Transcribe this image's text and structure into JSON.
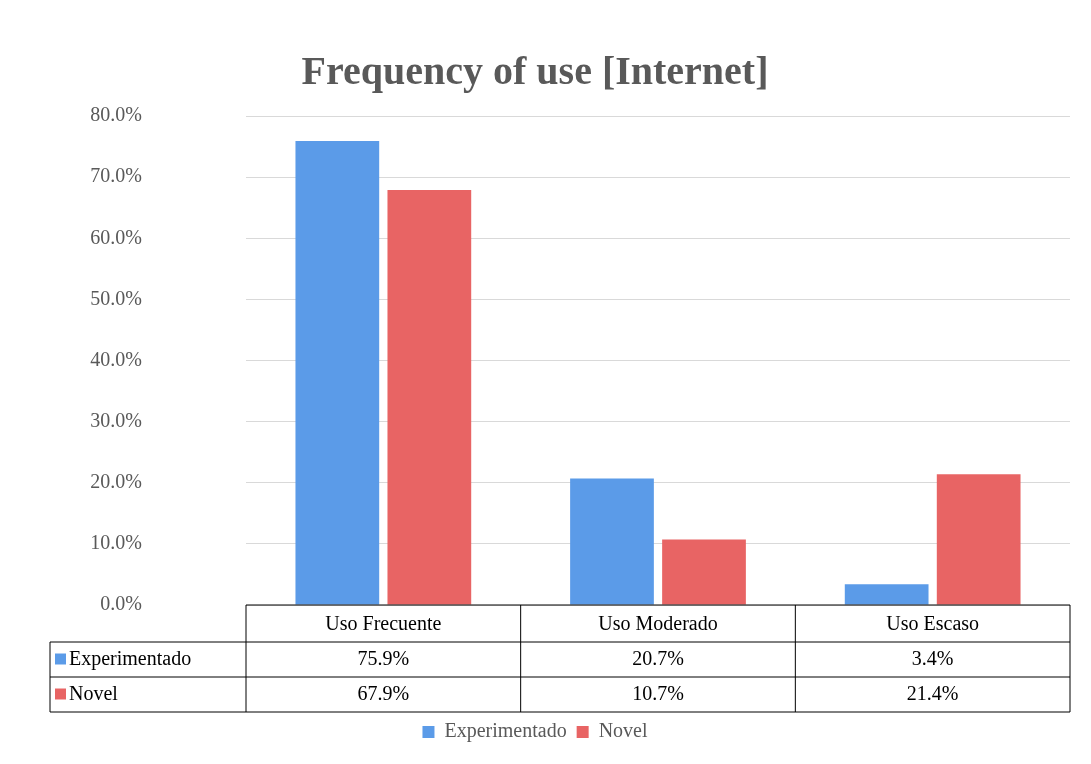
{
  "chart_data": {
    "type": "bar",
    "title": "Frequency of use [Internet]",
    "categories": [
      "Uso Frecuente",
      "Uso Moderado",
      "Uso Escaso"
    ],
    "series": [
      {
        "name": "Experimentado",
        "color": "#5b9be8",
        "values": [
          75.9,
          20.7,
          3.4
        ],
        "value_labels": [
          "75.9%",
          "20.7%",
          "3.4%"
        ]
      },
      {
        "name": "Novel",
        "color": "#e86464",
        "values": [
          67.9,
          10.7,
          21.4
        ],
        "value_labels": [
          "67.9%",
          "10.7%",
          "21.4%"
        ]
      }
    ],
    "ylim": [
      0,
      80
    ],
    "yticks": [
      {
        "value": 0,
        "label": "0.0%"
      },
      {
        "value": 10,
        "label": "10.0%"
      },
      {
        "value": 20,
        "label": "20.0%"
      },
      {
        "value": 30,
        "label": "30.0%"
      },
      {
        "value": 40,
        "label": "40.0%"
      },
      {
        "value": 50,
        "label": "50.0%"
      },
      {
        "value": 60,
        "label": "60.0%"
      },
      {
        "value": 70,
        "label": "70.0%"
      },
      {
        "value": 80,
        "label": "80.0%"
      }
    ],
    "grid": "y",
    "legend": "bottom"
  }
}
